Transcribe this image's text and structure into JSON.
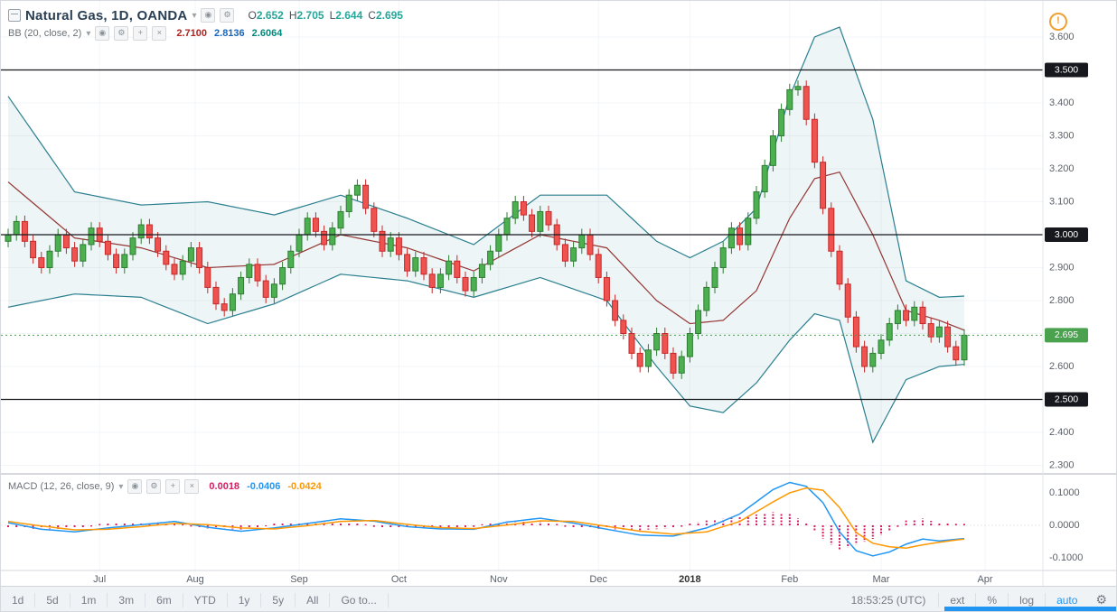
{
  "header": {
    "symbol": "Natural Gas, 1D, OANDA",
    "ohlc": {
      "o_label": "O",
      "h_label": "H",
      "l_label": "L",
      "c_label": "C",
      "open": "2.652",
      "high": "2.705",
      "low": "2.644",
      "close": "2.695"
    },
    "bb": {
      "name": "BB (20, close, 2)",
      "basis": "2.7100",
      "upper": "2.8136",
      "lower": "2.6064"
    }
  },
  "macd_legend": {
    "name": "MACD (12, 26, close, 9)",
    "hist": "0.0018",
    "macd": "-0.0406",
    "signal": "-0.0424"
  },
  "icons": {
    "window": "⊟",
    "caret": "▾",
    "eye": "◉",
    "gear": "⚙",
    "plus": "+",
    "close": "×",
    "warning": "!"
  },
  "toolbar": {
    "ranges": [
      "1d",
      "5d",
      "1m",
      "3m",
      "6m",
      "YTD",
      "1y",
      "5y",
      "All",
      "Go to..."
    ],
    "clock": "18:53:25 (UTC)",
    "modes": [
      "ext",
      "%",
      "log",
      "auto"
    ],
    "active_mode": "auto"
  },
  "axes": {
    "price_ticks": [
      "3.600",
      "3.400",
      "3.300",
      "3.200",
      "3.100",
      "2.900",
      "2.800",
      "2.600",
      "2.400",
      "2.300"
    ],
    "price_badges": [
      {
        "label": "3.500",
        "bg": "#16181d",
        "fg": "#ffffff"
      },
      {
        "label": "3.000",
        "bg": "#16181d",
        "fg": "#ffffff"
      },
      {
        "label": "2.500",
        "bg": "#16181d",
        "fg": "#ffffff"
      },
      {
        "label": "2.695",
        "bg": "#4aa14e",
        "fg": "#ffffff"
      }
    ],
    "macd_ticks": [
      "0.1000",
      "0.0000",
      "-0.1000"
    ],
    "months": [
      {
        "label": "Jul",
        "i": 11
      },
      {
        "label": "Aug",
        "i": 22.5
      },
      {
        "label": "Sep",
        "i": 35
      },
      {
        "label": "Oct",
        "i": 47
      },
      {
        "label": "Nov",
        "i": 59
      },
      {
        "label": "Dec",
        "i": 71
      },
      {
        "label": "2018",
        "i": 82,
        "strong": true
      },
      {
        "label": "Feb",
        "i": 94
      },
      {
        "label": "Mar",
        "i": 105
      },
      {
        "label": "Apr",
        "i": 117.5
      }
    ]
  },
  "chart_data": {
    "type": "candlestick",
    "title": "Natural Gas, 1D, OANDA",
    "interval": "1D",
    "ohlc_current": {
      "open": 2.652,
      "high": 2.705,
      "low": 2.644,
      "close": 2.695
    },
    "y_axis": {
      "min": 2.3,
      "max": 3.6,
      "step": 0.1
    },
    "macd_axis": {
      "min": -0.1,
      "max": 0.1
    },
    "overlays": {
      "horizontal_lines": [
        3.5,
        3.0,
        2.5
      ],
      "current_price": 2.695
    },
    "series": {
      "closes": [
        3.0,
        3.04,
        2.98,
        2.93,
        2.9,
        2.95,
        3.0,
        2.96,
        2.92,
        2.97,
        3.02,
        2.98,
        2.94,
        2.9,
        2.94,
        2.99,
        3.03,
        2.99,
        2.95,
        2.91,
        2.88,
        2.92,
        2.96,
        2.9,
        2.84,
        2.79,
        2.77,
        2.82,
        2.87,
        2.91,
        2.86,
        2.81,
        2.85,
        2.9,
        2.95,
        3.0,
        3.05,
        3.01,
        2.97,
        3.02,
        3.07,
        3.12,
        3.15,
        3.08,
        3.01,
        2.95,
        2.99,
        2.94,
        2.89,
        2.93,
        2.88,
        2.84,
        2.88,
        2.92,
        2.87,
        2.83,
        2.87,
        2.91,
        2.95,
        3.0,
        3.05,
        3.1,
        3.06,
        3.01,
        3.07,
        3.03,
        2.97,
        2.92,
        2.96,
        3.0,
        2.94,
        2.87,
        2.8,
        2.74,
        2.7,
        2.64,
        2.6,
        2.65,
        2.7,
        2.64,
        2.58,
        2.63,
        2.7,
        2.77,
        2.84,
        2.9,
        2.96,
        3.02,
        2.97,
        3.05,
        3.13,
        3.21,
        3.3,
        3.38,
        3.44,
        3.45,
        3.35,
        3.22,
        3.08,
        2.95,
        2.85,
        2.75,
        2.66,
        2.6,
        2.64,
        2.68,
        2.73,
        2.77,
        2.74,
        2.78,
        2.73,
        2.69,
        2.72,
        2.66,
        2.62,
        2.695
      ],
      "candle_wick": 0.018,
      "bollinger_points": [
        [
          0,
          3.42,
          3.16,
          2.78
        ],
        [
          8,
          3.13,
          2.99,
          2.82
        ],
        [
          16,
          3.09,
          2.96,
          2.81
        ],
        [
          24,
          3.1,
          2.9,
          2.73
        ],
        [
          32,
          3.06,
          2.91,
          2.79
        ],
        [
          40,
          3.12,
          3.0,
          2.88
        ],
        [
          48,
          3.05,
          2.96,
          2.86
        ],
        [
          56,
          2.97,
          2.89,
          2.81
        ],
        [
          64,
          3.12,
          3.0,
          2.87
        ],
        [
          72,
          3.12,
          2.96,
          2.8
        ],
        [
          78,
          2.98,
          2.8,
          2.6
        ],
        [
          82,
          2.93,
          2.73,
          2.48
        ],
        [
          86,
          2.98,
          2.74,
          2.46
        ],
        [
          90,
          3.08,
          2.83,
          2.55
        ],
        [
          94,
          3.42,
          3.05,
          2.68
        ],
        [
          97,
          3.6,
          3.17,
          2.76
        ],
        [
          100,
          3.63,
          3.19,
          2.74
        ],
        [
          104,
          3.35,
          3.0,
          2.37
        ],
        [
          108,
          2.86,
          2.77,
          2.56
        ],
        [
          112,
          2.81,
          2.74,
          2.6
        ],
        [
          115,
          2.8136,
          2.71,
          2.6064
        ]
      ],
      "macd_points": [
        [
          0,
          0.008,
          0.012
        ],
        [
          4,
          -0.012,
          -0.002
        ],
        [
          8,
          -0.02,
          -0.014
        ],
        [
          12,
          -0.008,
          -0.012
        ],
        [
          16,
          0.002,
          -0.004
        ],
        [
          20,
          0.012,
          0.006
        ],
        [
          24,
          -0.006,
          0.002
        ],
        [
          28,
          -0.018,
          -0.008
        ],
        [
          32,
          -0.008,
          -0.011
        ],
        [
          36,
          0.006,
          -0.001
        ],
        [
          40,
          0.02,
          0.012
        ],
        [
          44,
          0.013,
          0.015
        ],
        [
          48,
          -0.004,
          0.003
        ],
        [
          52,
          -0.011,
          -0.007
        ],
        [
          56,
          -0.012,
          -0.01
        ],
        [
          60,
          0.01,
          0.001
        ],
        [
          64,
          0.022,
          0.014
        ],
        [
          68,
          0.007,
          0.012
        ],
        [
          72,
          -0.012,
          -0.003
        ],
        [
          76,
          -0.03,
          -0.018
        ],
        [
          80,
          -0.033,
          -0.027
        ],
        [
          84,
          -0.008,
          -0.02
        ],
        [
          88,
          0.035,
          0.012
        ],
        [
          92,
          0.11,
          0.072
        ],
        [
          94,
          0.132,
          0.1
        ],
        [
          96,
          0.12,
          0.115
        ],
        [
          98,
          0.07,
          0.108
        ],
        [
          100,
          -0.02,
          0.055
        ],
        [
          102,
          -0.078,
          -0.022
        ],
        [
          104,
          -0.094,
          -0.055
        ],
        [
          106,
          -0.082,
          -0.066
        ],
        [
          108,
          -0.058,
          -0.07
        ],
        [
          110,
          -0.042,
          -0.06
        ],
        [
          112,
          -0.048,
          -0.052
        ],
        [
          114,
          -0.043,
          -0.045
        ],
        [
          115,
          -0.0406,
          -0.0424
        ]
      ]
    },
    "colors": {
      "up": "#4caf50",
      "up_border": "#2e7d32",
      "down": "#ef5350",
      "down_border": "#c62828",
      "bb_band": "#2a7f8f",
      "bb_basis": "#943634",
      "bb_fill": "rgba(42,127,143,0.08)",
      "macd_line": "#2196f3",
      "signal_line": "#ff9800",
      "histogram": "#d81b60",
      "hline": "#16181d",
      "current_price": "#4aa14e"
    }
  }
}
